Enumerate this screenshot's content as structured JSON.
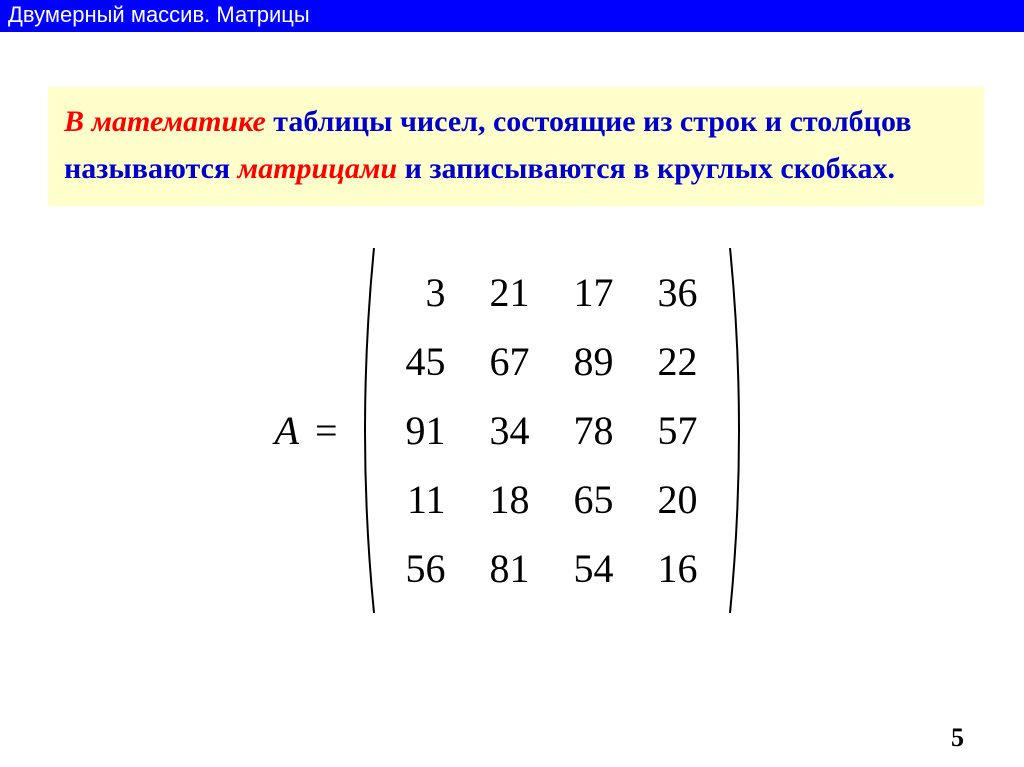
{
  "header": {
    "title": "Двумерный массив. Матрицы"
  },
  "definition": {
    "part1_red": "В математике",
    "part2": " таблицы чисел, состоящие из строк и столбцов называются ",
    "part3_red": "матрицами",
    "part4": " и записываются в круглых скобках."
  },
  "matrix": {
    "label": "A",
    "equals": "=",
    "rows": [
      [
        "3",
        "21",
        "17",
        "36"
      ],
      [
        "45",
        "67",
        "89",
        "22"
      ],
      [
        "91",
        "34",
        "78",
        "57"
      ],
      [
        "11",
        "18",
        "65",
        "20"
      ],
      [
        "56",
        "81",
        "54",
        "16"
      ]
    ]
  },
  "page_number": "5",
  "colors": {
    "header_bg": "#0000ff",
    "header_text": "#ffffff",
    "box_bg": "#ffffcc",
    "text_blue": "#0000cc",
    "text_red": "#ff0000",
    "matrix_text": "#000000"
  }
}
